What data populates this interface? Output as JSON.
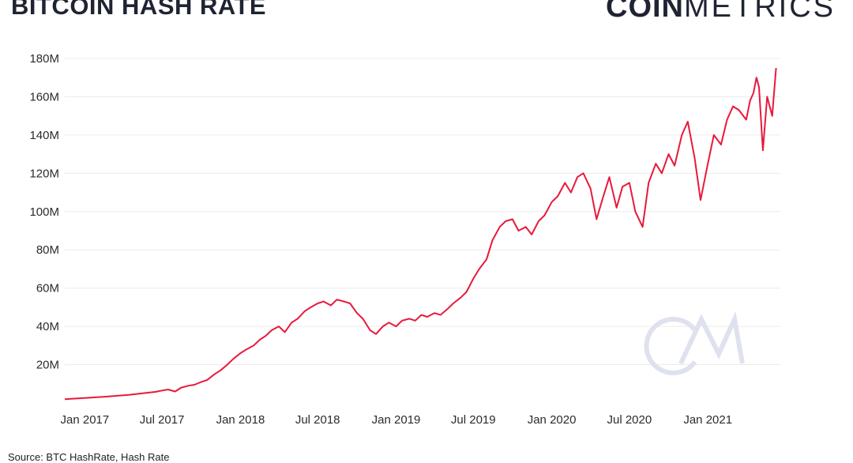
{
  "header": {
    "title": "BITCOIN HASH RATE",
    "brand_bold": "COIN",
    "brand_light": "METRICS"
  },
  "footer": {
    "source": "Source: BTC HashRate, Hash Rate"
  },
  "colors": {
    "line": "#e8193c",
    "grid": "#ececec",
    "text": "#2b2b2b",
    "title": "#1f2432",
    "watermark": "#dfe2ee"
  },
  "chart_data": {
    "type": "line",
    "title": "BITCOIN HASH RATE",
    "xlabel": "",
    "ylabel": "",
    "ylim": [
      0,
      180000000
    ],
    "grid": true,
    "legend": "none",
    "y_ticks": [
      {
        "value": 20000000,
        "label": "20M"
      },
      {
        "value": 40000000,
        "label": "40M"
      },
      {
        "value": 60000000,
        "label": "60M"
      },
      {
        "value": 80000000,
        "label": "80M"
      },
      {
        "value": 100000000,
        "label": "100M"
      },
      {
        "value": 120000000,
        "label": "120M"
      },
      {
        "value": 140000000,
        "label": "140M"
      },
      {
        "value": 160000000,
        "label": "160M"
      },
      {
        "value": 180000000,
        "label": "180M"
      }
    ],
    "x_ticks": [
      {
        "value": "2017-01-01",
        "label": "Jan 2017"
      },
      {
        "value": "2017-07-01",
        "label": "Jul 2017"
      },
      {
        "value": "2018-01-01",
        "label": "Jan 2018"
      },
      {
        "value": "2018-07-01",
        "label": "Jul 2018"
      },
      {
        "value": "2019-01-01",
        "label": "Jan 2019"
      },
      {
        "value": "2019-07-01",
        "label": "Jul 2019"
      },
      {
        "value": "2020-01-01",
        "label": "Jan 2020"
      },
      {
        "value": "2020-07-01",
        "label": "Jul 2020"
      },
      {
        "value": "2021-01-01",
        "label": "Jan 2021"
      }
    ],
    "xlim": [
      "2016-11-15",
      "2021-06-20"
    ],
    "series": [
      {
        "x": [
          "2016-11-15",
          "2016-12-15",
          "2017-01-15",
          "2017-02-15",
          "2017-03-15",
          "2017-04-15",
          "2017-05-15",
          "2017-06-15",
          "2017-07-01",
          "2017-07-15",
          "2017-08-01",
          "2017-08-15",
          "2017-09-01",
          "2017-09-15",
          "2017-10-01",
          "2017-10-15",
          "2017-11-01",
          "2017-11-15",
          "2017-12-01",
          "2017-12-15",
          "2018-01-01",
          "2018-01-15",
          "2018-02-01",
          "2018-02-15",
          "2018-03-01",
          "2018-03-15",
          "2018-04-01",
          "2018-04-15",
          "2018-05-01",
          "2018-05-15",
          "2018-06-01",
          "2018-06-15",
          "2018-07-01",
          "2018-07-15",
          "2018-08-01",
          "2018-08-15",
          "2018-09-01",
          "2018-09-15",
          "2018-10-01",
          "2018-10-15",
          "2018-11-01",
          "2018-11-15",
          "2018-12-01",
          "2018-12-15",
          "2019-01-01",
          "2019-01-15",
          "2019-02-01",
          "2019-02-15",
          "2019-03-01",
          "2019-03-15",
          "2019-04-01",
          "2019-04-15",
          "2019-05-01",
          "2019-05-15",
          "2019-06-01",
          "2019-06-15",
          "2019-07-01",
          "2019-07-15",
          "2019-08-01",
          "2019-08-15",
          "2019-09-01",
          "2019-09-15",
          "2019-10-01",
          "2019-10-15",
          "2019-11-01",
          "2019-11-15",
          "2019-12-01",
          "2019-12-15",
          "2020-01-01",
          "2020-01-15",
          "2020-02-01",
          "2020-02-15",
          "2020-03-01",
          "2020-03-15",
          "2020-04-01",
          "2020-04-15",
          "2020-05-01",
          "2020-05-15",
          "2020-06-01",
          "2020-06-15",
          "2020-07-01",
          "2020-07-15",
          "2020-08-01",
          "2020-08-15",
          "2020-09-01",
          "2020-09-15",
          "2020-10-01",
          "2020-10-15",
          "2020-11-01",
          "2020-11-15",
          "2020-12-01",
          "2020-12-15",
          "2021-01-01",
          "2021-01-15",
          "2021-02-01",
          "2021-02-15",
          "2021-03-01",
          "2021-03-15",
          "2021-04-01",
          "2021-04-10",
          "2021-04-18",
          "2021-04-25",
          "2021-05-01",
          "2021-05-10",
          "2021-05-20",
          "2021-06-01",
          "2021-06-10"
        ],
        "y": [
          2000000,
          2400000,
          2800000,
          3200000,
          3700000,
          4200000,
          5000000,
          5800000,
          6500000,
          7000000,
          6000000,
          8000000,
          9000000,
          9500000,
          11000000,
          12000000,
          15000000,
          17000000,
          20000000,
          23000000,
          26000000,
          28000000,
          30000000,
          33000000,
          35000000,
          38000000,
          40000000,
          37000000,
          42000000,
          44000000,
          48000000,
          50000000,
          52000000,
          53000000,
          51000000,
          54000000,
          53000000,
          52000000,
          47000000,
          44000000,
          38000000,
          36000000,
          40000000,
          42000000,
          40000000,
          43000000,
          44000000,
          43000000,
          46000000,
          45000000,
          47000000,
          46000000,
          49000000,
          52000000,
          55000000,
          58000000,
          65000000,
          70000000,
          75000000,
          85000000,
          92000000,
          95000000,
          96000000,
          90000000,
          92000000,
          88000000,
          95000000,
          98000000,
          105000000,
          108000000,
          115000000,
          110000000,
          118000000,
          120000000,
          112000000,
          96000000,
          108000000,
          118000000,
          102000000,
          113000000,
          115000000,
          100000000,
          92000000,
          115000000,
          125000000,
          120000000,
          130000000,
          124000000,
          140000000,
          147000000,
          128000000,
          106000000,
          125000000,
          140000000,
          135000000,
          148000000,
          155000000,
          153000000,
          148000000,
          158000000,
          162000000,
          170000000,
          165000000,
          132000000,
          160000000,
          150000000,
          175000000
        ]
      }
    ]
  }
}
